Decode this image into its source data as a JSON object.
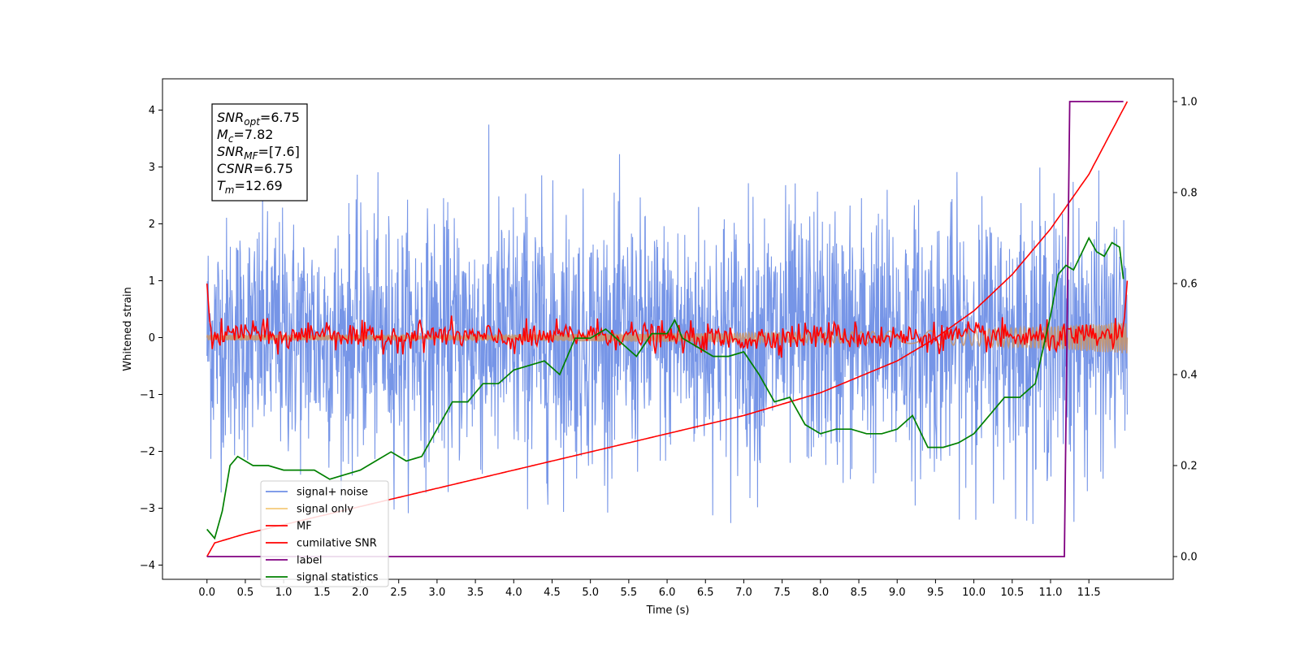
{
  "chart_data": {
    "type": "line",
    "title": "",
    "xlabel": "Time (s)",
    "ylabel": "Whitened strain",
    "ylabel_right": "",
    "xlim": [
      -0.58,
      12.6
    ],
    "ylim": [
      -4.25,
      4.55
    ],
    "ylim_right": [
      -0.05,
      1.05
    ],
    "x_ticks": [
      "0.0",
      "0.5",
      "1.0",
      "1.5",
      "2.0",
      "2.5",
      "3.0",
      "3.5",
      "4.0",
      "4.5",
      "5.0",
      "5.5",
      "6.0",
      "6.5",
      "7.0",
      "7.5",
      "8.0",
      "8.5",
      "9.0",
      "9.5",
      "10.0",
      "10.5",
      "11.0",
      "11.5"
    ],
    "y_ticks": [
      "4",
      "3",
      "2",
      "1",
      "0",
      "−1",
      "−2",
      "−3",
      "−4"
    ],
    "y_ticks_right": [
      "1.0",
      "0.8",
      "0.6",
      "0.4",
      "0.2",
      "0.0"
    ],
    "grid": false,
    "legend_position": "bottom-left",
    "annotation": {
      "lines": [
        {
          "base": "SNR",
          "sub": "opt",
          "value": "=6.75"
        },
        {
          "base": "M",
          "sub": "c",
          "value": "=7.82"
        },
        {
          "base": "SNR",
          "sub": "MF",
          "value": "=[7.6]"
        },
        {
          "base": "CSNR",
          "sub": "",
          "value": "=6.75"
        },
        {
          "base": "T",
          "sub": "m",
          "value": "=12.69"
        }
      ]
    },
    "series": [
      {
        "name": "signal+ noise",
        "color": "#6f8fe6",
        "axis": "left",
        "description_range": [
          -3.7,
          4.2
        ],
        "envelope_x": [
          0.0,
          1.0,
          2.0,
          3.0,
          4.0,
          5.0,
          6.0,
          7.0,
          8.0,
          9.0,
          10.0,
          11.0,
          11.5,
          12.0
        ],
        "envelope_upper": [
          2.9,
          3.4,
          3.3,
          2.9,
          4.15,
          3.3,
          3.1,
          3.0,
          3.7,
          3.5,
          3.3,
          3.5,
          3.45,
          2.7
        ],
        "envelope_lower": [
          -3.2,
          -2.8,
          -2.9,
          -3.2,
          -3.0,
          -3.1,
          -3.0,
          -3.7,
          -3.1,
          -3.2,
          -3.2,
          -3.3,
          -3.2,
          -2.6
        ]
      },
      {
        "name": "signal only",
        "color": "#f5c97a",
        "axis": "left",
        "amplitude_x": [
          0.0,
          4.0,
          8.0,
          10.0,
          11.0,
          12.0
        ],
        "amplitude": [
          0.05,
          0.06,
          0.09,
          0.14,
          0.2,
          0.28
        ]
      },
      {
        "name": "MF",
        "color": "#ff0000",
        "axis": "left",
        "x": [
          0.0,
          0.05,
          0.1,
          0.5,
          1.0,
          1.5,
          2.0,
          3.0,
          4.0,
          5.0,
          6.0,
          7.0,
          8.0,
          9.0,
          10.0,
          11.0,
          11.95,
          12.0
        ],
        "values": [
          0.95,
          0.0,
          -0.05,
          0.35,
          -0.1,
          0.35,
          -0.05,
          0.15,
          -0.1,
          0.2,
          0.0,
          -0.1,
          0.15,
          0.0,
          0.1,
          -0.05,
          0.1,
          1.0
        ],
        "noise_amplitude": 0.12
      },
      {
        "name": "cumilative SNR",
        "color": "#ff0000",
        "axis": "right",
        "x": [
          0.0,
          0.1,
          0.5,
          1.0,
          2.0,
          3.0,
          4.0,
          5.0,
          6.0,
          7.0,
          8.0,
          9.0,
          9.5,
          10.0,
          10.5,
          11.0,
          11.5,
          12.0
        ],
        "values": [
          0.0,
          0.03,
          0.05,
          0.07,
          0.11,
          0.15,
          0.19,
          0.23,
          0.27,
          0.31,
          0.36,
          0.43,
          0.48,
          0.54,
          0.62,
          0.72,
          0.84,
          1.0
        ]
      },
      {
        "name": "label",
        "color": "#800080",
        "axis": "right",
        "x": [
          0.0,
          11.18,
          11.25,
          11.95
        ],
        "values": [
          0.0,
          0.0,
          1.0,
          1.0
        ]
      },
      {
        "name": "signal statistics",
        "color": "#008000",
        "axis": "right",
        "x": [
          0.0,
          0.1,
          0.2,
          0.3,
          0.4,
          0.6,
          0.8,
          1.0,
          1.2,
          1.4,
          1.6,
          1.8,
          2.0,
          2.2,
          2.4,
          2.6,
          2.8,
          3.0,
          3.2,
          3.4,
          3.6,
          3.8,
          4.0,
          4.2,
          4.4,
          4.6,
          4.8,
          5.0,
          5.2,
          5.4,
          5.6,
          5.8,
          6.0,
          6.1,
          6.2,
          6.4,
          6.6,
          6.8,
          7.0,
          7.2,
          7.4,
          7.6,
          7.8,
          8.0,
          8.2,
          8.4,
          8.6,
          8.8,
          9.0,
          9.2,
          9.4,
          9.6,
          9.8,
          10.0,
          10.2,
          10.4,
          10.6,
          10.8,
          11.0,
          11.1,
          11.2,
          11.3,
          11.5,
          11.6,
          11.7,
          11.8,
          11.9,
          11.95
        ],
        "values": [
          0.06,
          0.04,
          0.1,
          0.2,
          0.22,
          0.2,
          0.2,
          0.19,
          0.19,
          0.19,
          0.17,
          0.18,
          0.19,
          0.21,
          0.23,
          0.21,
          0.22,
          0.28,
          0.34,
          0.34,
          0.38,
          0.38,
          0.41,
          0.42,
          0.43,
          0.4,
          0.48,
          0.48,
          0.5,
          0.47,
          0.44,
          0.49,
          0.49,
          0.52,
          0.48,
          0.46,
          0.44,
          0.44,
          0.45,
          0.4,
          0.34,
          0.35,
          0.29,
          0.27,
          0.28,
          0.28,
          0.27,
          0.27,
          0.28,
          0.31,
          0.24,
          0.24,
          0.25,
          0.27,
          0.31,
          0.35,
          0.35,
          0.38,
          0.53,
          0.62,
          0.64,
          0.63,
          0.7,
          0.67,
          0.66,
          0.69,
          0.68,
          0.61
        ]
      }
    ]
  }
}
